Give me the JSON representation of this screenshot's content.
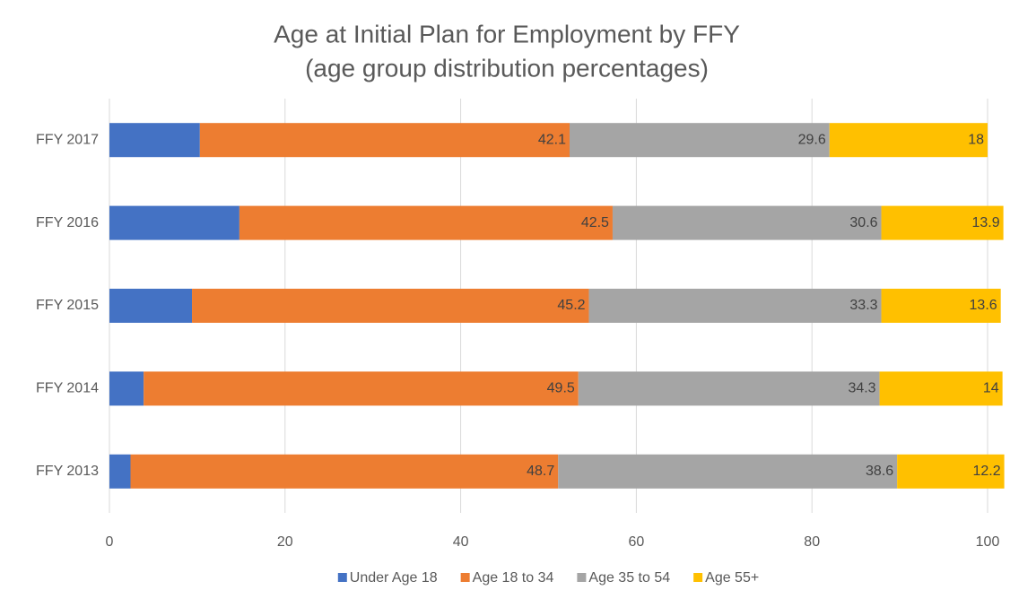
{
  "chart_data": {
    "type": "stacked_bar_horizontal",
    "title": "Age at Initial Plan for Employment by FFY",
    "subtitle": "(age group distribution percentages)",
    "categories": [
      "FFY 2017",
      "FFY 2016",
      "FFY 2015",
      "FFY 2014",
      "FFY 2013"
    ],
    "series": [
      {
        "name": "Under Age 18",
        "color": "#4472c4",
        "values": [
          10.3,
          14.8,
          9.4,
          3.9,
          2.4
        ]
      },
      {
        "name": "Age 18 to 34",
        "color": "#ed7d31",
        "values": [
          42.1,
          42.5,
          45.2,
          49.5,
          48.7
        ]
      },
      {
        "name": "Age 35 to 54",
        "color": "#a5a5a5",
        "values": [
          29.6,
          30.6,
          33.3,
          34.3,
          38.6
        ]
      },
      {
        "name": "Age 55+",
        "color": "#ffc000",
        "values": [
          18,
          13.9,
          13.6,
          14,
          12.2
        ]
      }
    ],
    "xlim": [
      0,
      100
    ],
    "xticks": [
      0,
      20,
      40,
      60,
      80,
      100
    ],
    "grid": true,
    "legend": "bottom"
  }
}
